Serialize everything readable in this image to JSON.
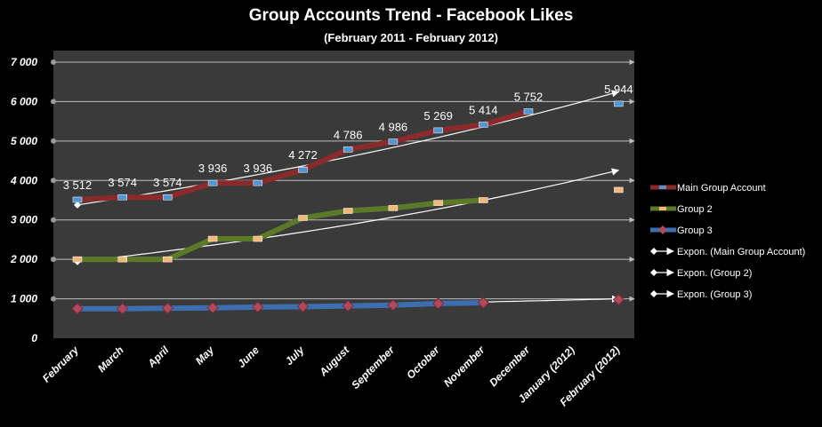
{
  "chart_data": {
    "type": "line",
    "title": "Group Accounts Trend - Facebook Likes",
    "subtitle": "(February 2011 - February 2012)",
    "xlabel": "",
    "ylabel": "",
    "ylim": [
      0,
      7000
    ],
    "y_ticks": [
      "0",
      "1 000",
      "2 000",
      "3 000",
      "4 000",
      "5 000",
      "6 000",
      "7 000"
    ],
    "categories": [
      "February",
      "March",
      "April",
      "May",
      "June",
      "July",
      "August",
      "September",
      "October",
      "November",
      "December",
      "January (2012)",
      "February (2012)"
    ],
    "grid": true,
    "legend_position": "right",
    "series": [
      {
        "name": "Main Group Account",
        "color": "#8b2a2a",
        "marker_color": "#4f97d3",
        "values": [
          3512,
          3574,
          3574,
          3936,
          3936,
          4272,
          4786,
          4986,
          5269,
          5414,
          5752,
          null,
          5944
        ],
        "labels": [
          "3 512",
          "3 574",
          "3 574",
          "3 936",
          "3 936",
          "4 272",
          "4 786",
          "4 986",
          "5 269",
          "5 414",
          "5 752",
          "",
          "5 944"
        ]
      },
      {
        "name": "Group 2",
        "color": "#5a7a2a",
        "marker_color": "#f4b77a",
        "values": [
          2000,
          2000,
          2000,
          2520,
          2520,
          3050,
          3230,
          3300,
          3430,
          3500,
          null,
          null,
          3760
        ]
      },
      {
        "name": "Group 3",
        "color": "#3d6fb0",
        "marker_color": "#b04a5a",
        "values": [
          750,
          750,
          760,
          770,
          790,
          800,
          820,
          840,
          880,
          900,
          null,
          null,
          980
        ]
      }
    ],
    "trendlines": [
      {
        "name": "Expon. (Main Group Account)",
        "type": "exponential",
        "color": "#ffffff",
        "start": 3380,
        "end": 6250
      },
      {
        "name": "Expon. (Group 2)",
        "type": "exponential",
        "color": "#ffffff",
        "start": 1940,
        "end": 4260
      },
      {
        "name": "Expon. (Group 3)",
        "type": "exponential",
        "color": "#ffffff",
        "start": 710,
        "end": 1000
      }
    ]
  },
  "colors": {
    "background": "#000000",
    "plot_area": "#3a3a3a",
    "gridline": "#ffffff",
    "text": "#ffffff"
  }
}
